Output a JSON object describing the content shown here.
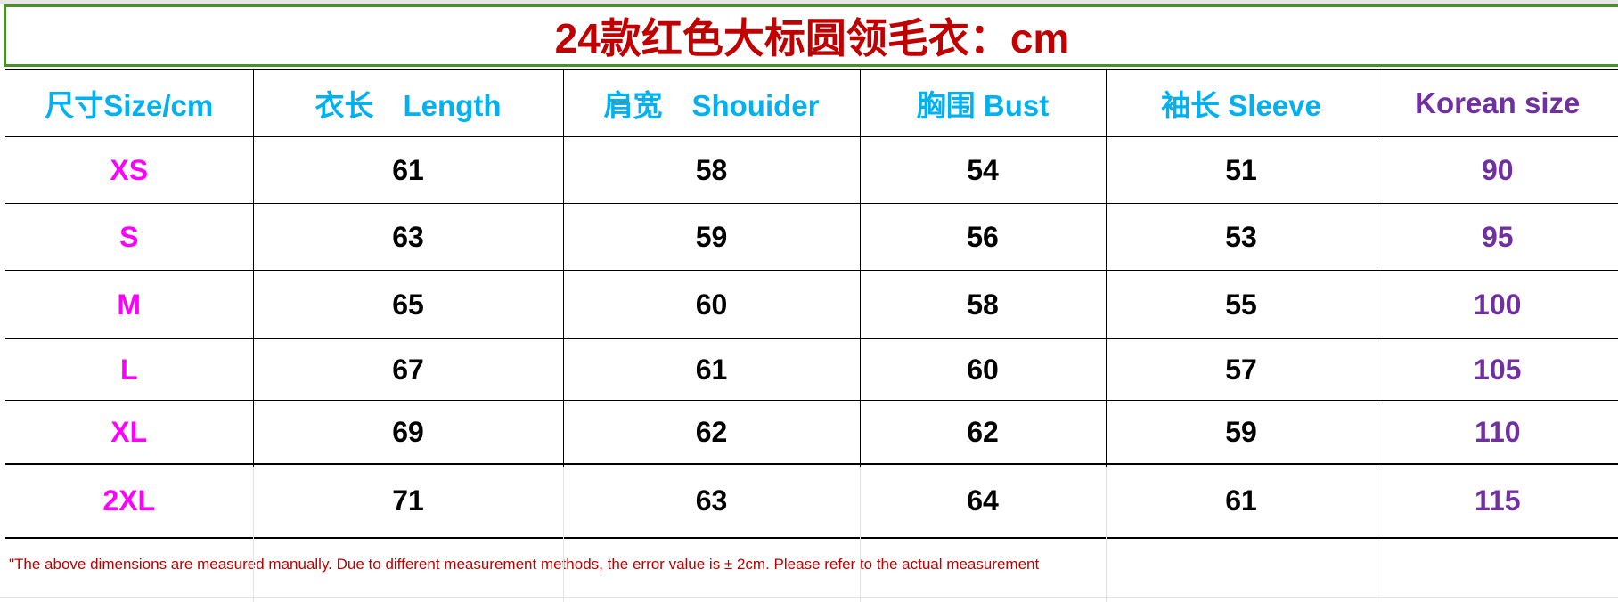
{
  "title": "24款红色大标圆领毛衣：cm",
  "headers": [
    "尺寸Size/cm",
    "衣长　Length",
    "肩宽　Shouider",
    "胸围  Bust",
    "袖长  Sleeve",
    "Korean size"
  ],
  "rows": [
    [
      "XS",
      "61",
      "58",
      "54",
      "51",
      "90"
    ],
    [
      "S",
      "63",
      "59",
      "56",
      "53",
      "95"
    ],
    [
      "M",
      "65",
      "60",
      "58",
      "55",
      "100"
    ],
    [
      "L",
      "67",
      "61",
      "60",
      "57",
      "105"
    ],
    [
      "XL",
      "69",
      "62",
      "62",
      "59",
      "110"
    ],
    [
      "2XL",
      "71",
      "63",
      "64",
      "61",
      "115"
    ]
  ],
  "note": "\"The above dimensions are measured manually. Due to different measurement methods, the error value is ± 2cm. Please refer to the actual measurement",
  "colors": {
    "title": "#c00000",
    "header": "#00b0f0",
    "size": "#ff00ff",
    "korean": "#7030a0",
    "note": "#c00000",
    "title_border": "#4a8f2a"
  }
}
